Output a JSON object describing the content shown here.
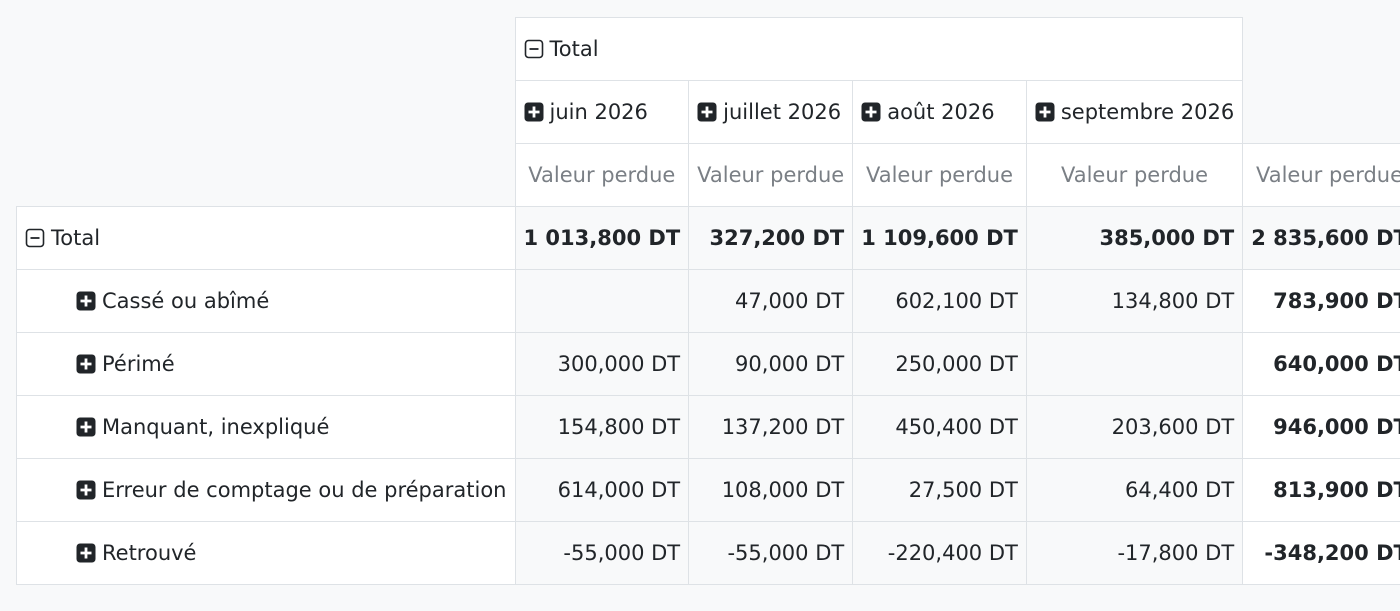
{
  "header": {
    "total": "Total",
    "columns": [
      "juin 2026",
      "juillet 2026",
      "août 2026",
      "septembre 2026"
    ],
    "measures": [
      "Valeur perdue",
      "Valeur perdue",
      "Valeur perdue",
      "Valeur perdue",
      "Valeur perdue"
    ]
  },
  "total_row": {
    "label": "Total",
    "values": [
      "1 013,800 DT",
      "327,200 DT",
      "1 109,600 DT",
      "385,000 DT",
      "2 835,600 DT"
    ]
  },
  "rows": [
    {
      "label": "Cassé ou abîmé",
      "values": [
        null,
        "47,000 DT",
        "602,100 DT",
        "134,800 DT",
        "783,900 DT"
      ]
    },
    {
      "label": "Périmé",
      "values": [
        "300,000 DT",
        "90,000 DT",
        "250,000 DT",
        null,
        "640,000 DT"
      ]
    },
    {
      "label": "Manquant, inexpliqué",
      "values": [
        "154,800 DT",
        "137,200 DT",
        "450,400 DT",
        "203,600 DT",
        "946,000 DT"
      ]
    },
    {
      "label": "Erreur de comptage ou de préparation",
      "values": [
        "614,000 DT",
        "108,000 DT",
        "27,500 DT",
        "64,400 DT",
        "813,900 DT"
      ]
    },
    {
      "label": "Retrouvé",
      "values": [
        "-55,000 DT",
        "-55,000 DT",
        "-220,400 DT",
        "-17,800 DT",
        "-348,200 DT"
      ]
    }
  ]
}
